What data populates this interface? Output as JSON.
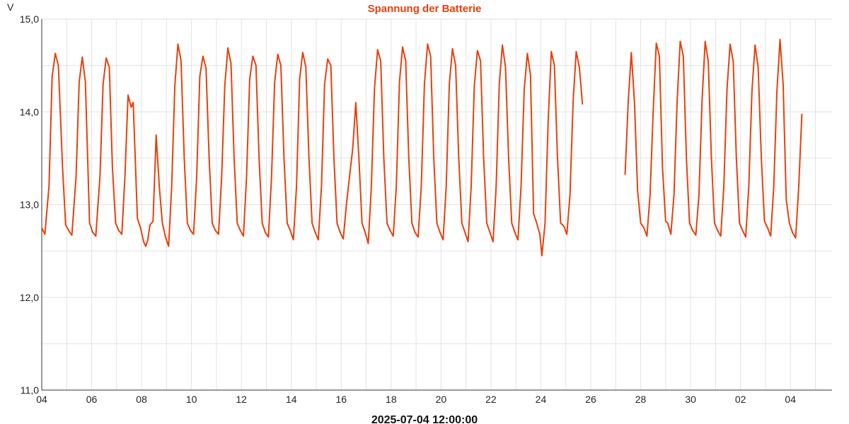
{
  "chart_data": {
    "type": "line",
    "title": "Spannung der Batterie",
    "ylabel": "V",
    "caption": "2025-07-04 12:00:00",
    "ylim": [
      11.0,
      15.0
    ],
    "y_ticks": [
      "15,0",
      "14,0",
      "13,0",
      "12,0",
      "11,0"
    ],
    "y_tick_values": [
      15,
      14,
      13,
      12,
      11
    ],
    "x_range_hours": [
      0,
      760
    ],
    "x_ticks": [
      {
        "label": "04",
        "hour": 0
      },
      {
        "label": "06",
        "hour": 48
      },
      {
        "label": "08",
        "hour": 96
      },
      {
        "label": "10",
        "hour": 144
      },
      {
        "label": "12",
        "hour": 192
      },
      {
        "label": "14",
        "hour": 240
      },
      {
        "label": "16",
        "hour": 288
      },
      {
        "label": "18",
        "hour": 336
      },
      {
        "label": "20",
        "hour": 384
      },
      {
        "label": "22",
        "hour": 432
      },
      {
        "label": "24",
        "hour": 480
      },
      {
        "label": "26",
        "hour": 528
      },
      {
        "label": "28",
        "hour": 576
      },
      {
        "label": "30",
        "hour": 624
      },
      {
        "label": "02",
        "hour": 672
      },
      {
        "label": "04",
        "hour": 720
      }
    ],
    "grid": true,
    "series": [
      {
        "color": "#e8400c",
        "segments": [
          [
            [
              0,
              12.75
            ],
            [
              3,
              12.68
            ],
            [
              7,
              13.2
            ],
            [
              10,
              14.38
            ],
            [
              13,
              14.63
            ],
            [
              16,
              14.5
            ],
            [
              20,
              13.4
            ],
            [
              23,
              12.78
            ],
            [
              27,
              12.7
            ],
            [
              29,
              12.67
            ],
            [
              33,
              13.3
            ],
            [
              36,
              14.32
            ],
            [
              39,
              14.59
            ],
            [
              42,
              14.32
            ],
            [
              46,
              12.8
            ],
            [
              49,
              12.7
            ],
            [
              52,
              12.66
            ],
            [
              56,
              13.3
            ],
            [
              59,
              14.3
            ],
            [
              62,
              14.58
            ],
            [
              65,
              14.48
            ],
            [
              68,
              13.4
            ],
            [
              71,
              12.8
            ],
            [
              74,
              12.72
            ],
            [
              77,
              12.68
            ],
            [
              80,
              13.3
            ],
            [
              83,
              14.18
            ],
            [
              86,
              14.05
            ],
            [
              88,
              14.1
            ],
            [
              92,
              12.85
            ],
            [
              95,
              12.75
            ],
            [
              98,
              12.6
            ],
            [
              100,
              12.55
            ],
            [
              102,
              12.62
            ],
            [
              104,
              12.78
            ],
            [
              107,
              12.82
            ],
            [
              110,
              13.75
            ],
            [
              113,
              13.2
            ],
            [
              116,
              12.8
            ],
            [
              119,
              12.65
            ],
            [
              122,
              12.55
            ],
            [
              125,
              13.2
            ],
            [
              128,
              14.28
            ],
            [
              131,
              14.73
            ],
            [
              134,
              14.55
            ],
            [
              137,
              13.5
            ],
            [
              140,
              12.8
            ],
            [
              143,
              12.72
            ],
            [
              146,
              12.68
            ],
            [
              149,
              13.3
            ],
            [
              152,
              14.38
            ],
            [
              155,
              14.6
            ],
            [
              158,
              14.47
            ],
            [
              161,
              13.5
            ],
            [
              164,
              12.8
            ],
            [
              167,
              12.72
            ],
            [
              170,
              12.68
            ],
            [
              173,
              13.3
            ],
            [
              176,
              14.28
            ],
            [
              179,
              14.69
            ],
            [
              182,
              14.52
            ],
            [
              185,
              13.5
            ],
            [
              188,
              12.8
            ],
            [
              191,
              12.72
            ],
            [
              194,
              12.66
            ],
            [
              197,
              13.3
            ],
            [
              200,
              14.35
            ],
            [
              203,
              14.6
            ],
            [
              206,
              14.5
            ],
            [
              209,
              13.5
            ],
            [
              212,
              12.8
            ],
            [
              215,
              12.7
            ],
            [
              218,
              12.65
            ],
            [
              221,
              13.3
            ],
            [
              224,
              14.32
            ],
            [
              227,
              14.62
            ],
            [
              230,
              14.5
            ],
            [
              233,
              13.5
            ],
            [
              236,
              12.8
            ],
            [
              239,
              12.72
            ],
            [
              242,
              12.62
            ],
            [
              245,
              13.2
            ],
            [
              248,
              14.35
            ],
            [
              251,
              14.64
            ],
            [
              254,
              14.48
            ],
            [
              257,
              13.5
            ],
            [
              260,
              12.8
            ],
            [
              263,
              12.7
            ],
            [
              266,
              12.62
            ],
            [
              269,
              13.2
            ],
            [
              272,
              14.3
            ],
            [
              275,
              14.57
            ],
            [
              278,
              14.5
            ],
            [
              281,
              13.5
            ],
            [
              284,
              12.8
            ],
            [
              287,
              12.7
            ],
            [
              290,
              12.63
            ],
            [
              293,
              13.0
            ],
            [
              296,
              13.3
            ],
            [
              299,
              13.6
            ],
            [
              302,
              14.1
            ],
            [
              305,
              13.5
            ],
            [
              308,
              12.8
            ],
            [
              311,
              12.7
            ],
            [
              314,
              12.58
            ],
            [
              317,
              13.2
            ],
            [
              320,
              14.25
            ],
            [
              323,
              14.67
            ],
            [
              326,
              14.55
            ],
            [
              329,
              13.5
            ],
            [
              332,
              12.8
            ],
            [
              335,
              12.72
            ],
            [
              338,
              12.66
            ],
            [
              341,
              13.2
            ],
            [
              344,
              14.32
            ],
            [
              347,
              14.7
            ],
            [
              350,
              14.55
            ],
            [
              353,
              13.5
            ],
            [
              356,
              12.8
            ],
            [
              359,
              12.7
            ],
            [
              362,
              12.65
            ],
            [
              365,
              13.2
            ],
            [
              368,
              14.3
            ],
            [
              371,
              14.73
            ],
            [
              374,
              14.6
            ],
            [
              377,
              13.5
            ],
            [
              380,
              12.8
            ],
            [
              383,
              12.7
            ],
            [
              386,
              12.62
            ],
            [
              389,
              13.2
            ],
            [
              392,
              14.3
            ],
            [
              395,
              14.68
            ],
            [
              398,
              14.5
            ],
            [
              401,
              13.5
            ],
            [
              404,
              12.8
            ],
            [
              407,
              12.7
            ],
            [
              410,
              12.6
            ],
            [
              413,
              13.2
            ],
            [
              416,
              14.28
            ],
            [
              419,
              14.66
            ],
            [
              422,
              14.55
            ],
            [
              425,
              13.5
            ],
            [
              428,
              12.8
            ],
            [
              431,
              12.7
            ],
            [
              434,
              12.6
            ],
            [
              437,
              13.2
            ],
            [
              440,
              14.3
            ],
            [
              443,
              14.72
            ],
            [
              446,
              14.48
            ],
            [
              449,
              13.5
            ],
            [
              452,
              12.8
            ],
            [
              455,
              12.7
            ],
            [
              458,
              12.62
            ],
            [
              461,
              13.2
            ],
            [
              464,
              14.25
            ],
            [
              467,
              14.63
            ],
            [
              470,
              14.4
            ],
            [
              473,
              12.9
            ],
            [
              476,
              12.8
            ],
            [
              479,
              12.68
            ],
            [
              481,
              12.45
            ],
            [
              484,
              12.8
            ],
            [
              487,
              13.9
            ],
            [
              490,
              14.65
            ],
            [
              493,
              14.5
            ],
            [
              496,
              13.5
            ],
            [
              499,
              12.8
            ],
            [
              502,
              12.77
            ],
            [
              505,
              12.68
            ],
            [
              508,
              13.1
            ],
            [
              511,
              14.1
            ],
            [
              514,
              14.65
            ],
            [
              517,
              14.48
            ],
            [
              520,
              14.08
            ]
          ],
          [
            [
              561,
              13.32
            ],
            [
              564,
              14.1
            ],
            [
              567,
              14.64
            ],
            [
              570,
              14.1
            ],
            [
              573,
              13.15
            ],
            [
              576,
              12.8
            ],
            [
              579,
              12.75
            ],
            [
              582,
              12.66
            ],
            [
              585,
              13.1
            ],
            [
              588,
              14.0
            ],
            [
              591,
              14.74
            ],
            [
              594,
              14.6
            ],
            [
              597,
              13.4
            ],
            [
              600,
              12.82
            ],
            [
              602,
              12.8
            ],
            [
              605,
              12.68
            ],
            [
              608,
              13.1
            ],
            [
              611,
              14.1
            ],
            [
              614,
              14.76
            ],
            [
              617,
              14.6
            ],
            [
              620,
              13.5
            ],
            [
              623,
              12.8
            ],
            [
              626,
              12.72
            ],
            [
              629,
              12.67
            ],
            [
              632,
              13.1
            ],
            [
              635,
              14.12
            ],
            [
              638,
              14.76
            ],
            [
              641,
              14.54
            ],
            [
              644,
              13.5
            ],
            [
              647,
              12.8
            ],
            [
              650,
              12.72
            ],
            [
              653,
              12.66
            ],
            [
              656,
              13.2
            ],
            [
              659,
              14.25
            ],
            [
              662,
              14.73
            ],
            [
              665,
              14.54
            ],
            [
              668,
              13.5
            ],
            [
              671,
              12.8
            ],
            [
              674,
              12.72
            ],
            [
              677,
              12.65
            ],
            [
              680,
              13.2
            ],
            [
              683,
              14.22
            ],
            [
              686,
              14.72
            ],
            [
              689,
              14.48
            ],
            [
              692,
              13.5
            ],
            [
              695,
              12.82
            ],
            [
              698,
              12.75
            ],
            [
              701,
              12.66
            ],
            [
              704,
              13.2
            ],
            [
              707,
              14.22
            ],
            [
              710,
              14.78
            ],
            [
              713,
              14.3
            ],
            [
              716,
              13.05
            ],
            [
              719,
              12.8
            ],
            [
              722,
              12.7
            ],
            [
              725,
              12.64
            ],
            [
              728,
              13.2
            ],
            [
              731,
              13.98
            ]
          ]
        ]
      }
    ]
  }
}
